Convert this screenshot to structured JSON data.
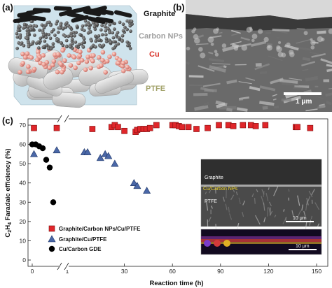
{
  "panel_a": {
    "label": "(a)",
    "layers": {
      "graphite": "Graphite",
      "carbon": "Carbon NPs",
      "cu": "Cu",
      "ptfe": "PTFE"
    },
    "colors": {
      "graphite": "#111111",
      "carbon": "#a8a8a8",
      "cu": "#d9352c",
      "ptfe": "#a3a36b"
    }
  },
  "panel_b": {
    "label": "(b)",
    "scalebar": "1 μm"
  },
  "panel_c": {
    "label": "(c)",
    "inset": {
      "graphite": "Graphite",
      "cucarbon": "Cu/Carbon NPs",
      "ptfe": "PTFE",
      "scale_top": "10 μm",
      "scale_bottom": "10 μm"
    }
  },
  "chart_data": {
    "type": "scatter",
    "xlabel": "Reaction time (h)",
    "ylabel_main": "C",
    "ylabel_sub1": "2",
    "ylabel_mid": "H",
    "ylabel_sub2": "4",
    "ylabel_rest": " Faradaic efficiency (%)",
    "ylim": [
      0,
      70
    ],
    "y_ticks": [
      "0",
      "10",
      "20",
      "30",
      "40",
      "50",
      "60",
      "70"
    ],
    "x_ticks_left": [
      "0",
      "1"
    ],
    "x_ticks_right": [
      "30",
      "60",
      "90",
      "120",
      "150"
    ],
    "x_broken_axis": true,
    "series": [
      {
        "name": "Graphite/Carbon NPs/Cu/PTFE",
        "marker": "square",
        "color": "#e0262a",
        "x_left": [
          0.05,
          0.7
        ],
        "y_left": [
          68.5,
          68.5
        ],
        "x": [
          10,
          22,
          24,
          26,
          30,
          37,
          38,
          40,
          42,
          44,
          46,
          50,
          60,
          62,
          64,
          66,
          70,
          75,
          82,
          89,
          95,
          98,
          104,
          109,
          112,
          118,
          137,
          138,
          146
        ],
        "y": [
          68,
          69,
          70,
          69,
          67,
          66.5,
          67.5,
          68,
          68,
          68,
          68.5,
          70,
          70,
          70,
          69.5,
          69,
          69,
          68,
          68.5,
          70,
          70,
          69.5,
          70,
          70,
          69.5,
          70,
          69,
          69,
          68.5
        ]
      },
      {
        "name": "Graphite/Cu/PTFE",
        "marker": "triangle",
        "color": "#4a67a7",
        "x_left": [
          0.05,
          0.7
        ],
        "y_left": [
          55,
          57
        ],
        "x": [
          5,
          7,
          15,
          18,
          20,
          24,
          36,
          38,
          44
        ],
        "y": [
          56,
          56,
          53,
          55,
          54,
          50,
          40,
          38.5,
          36
        ]
      },
      {
        "name": "Cu/Carbon GDE",
        "marker": "circle",
        "color": "#000000",
        "x_left": [
          0.0,
          0.1,
          0.2,
          0.3,
          0.4,
          0.5,
          0.6
        ],
        "y_left": [
          60,
          60,
          59,
          58,
          52,
          48,
          30
        ]
      }
    ]
  }
}
